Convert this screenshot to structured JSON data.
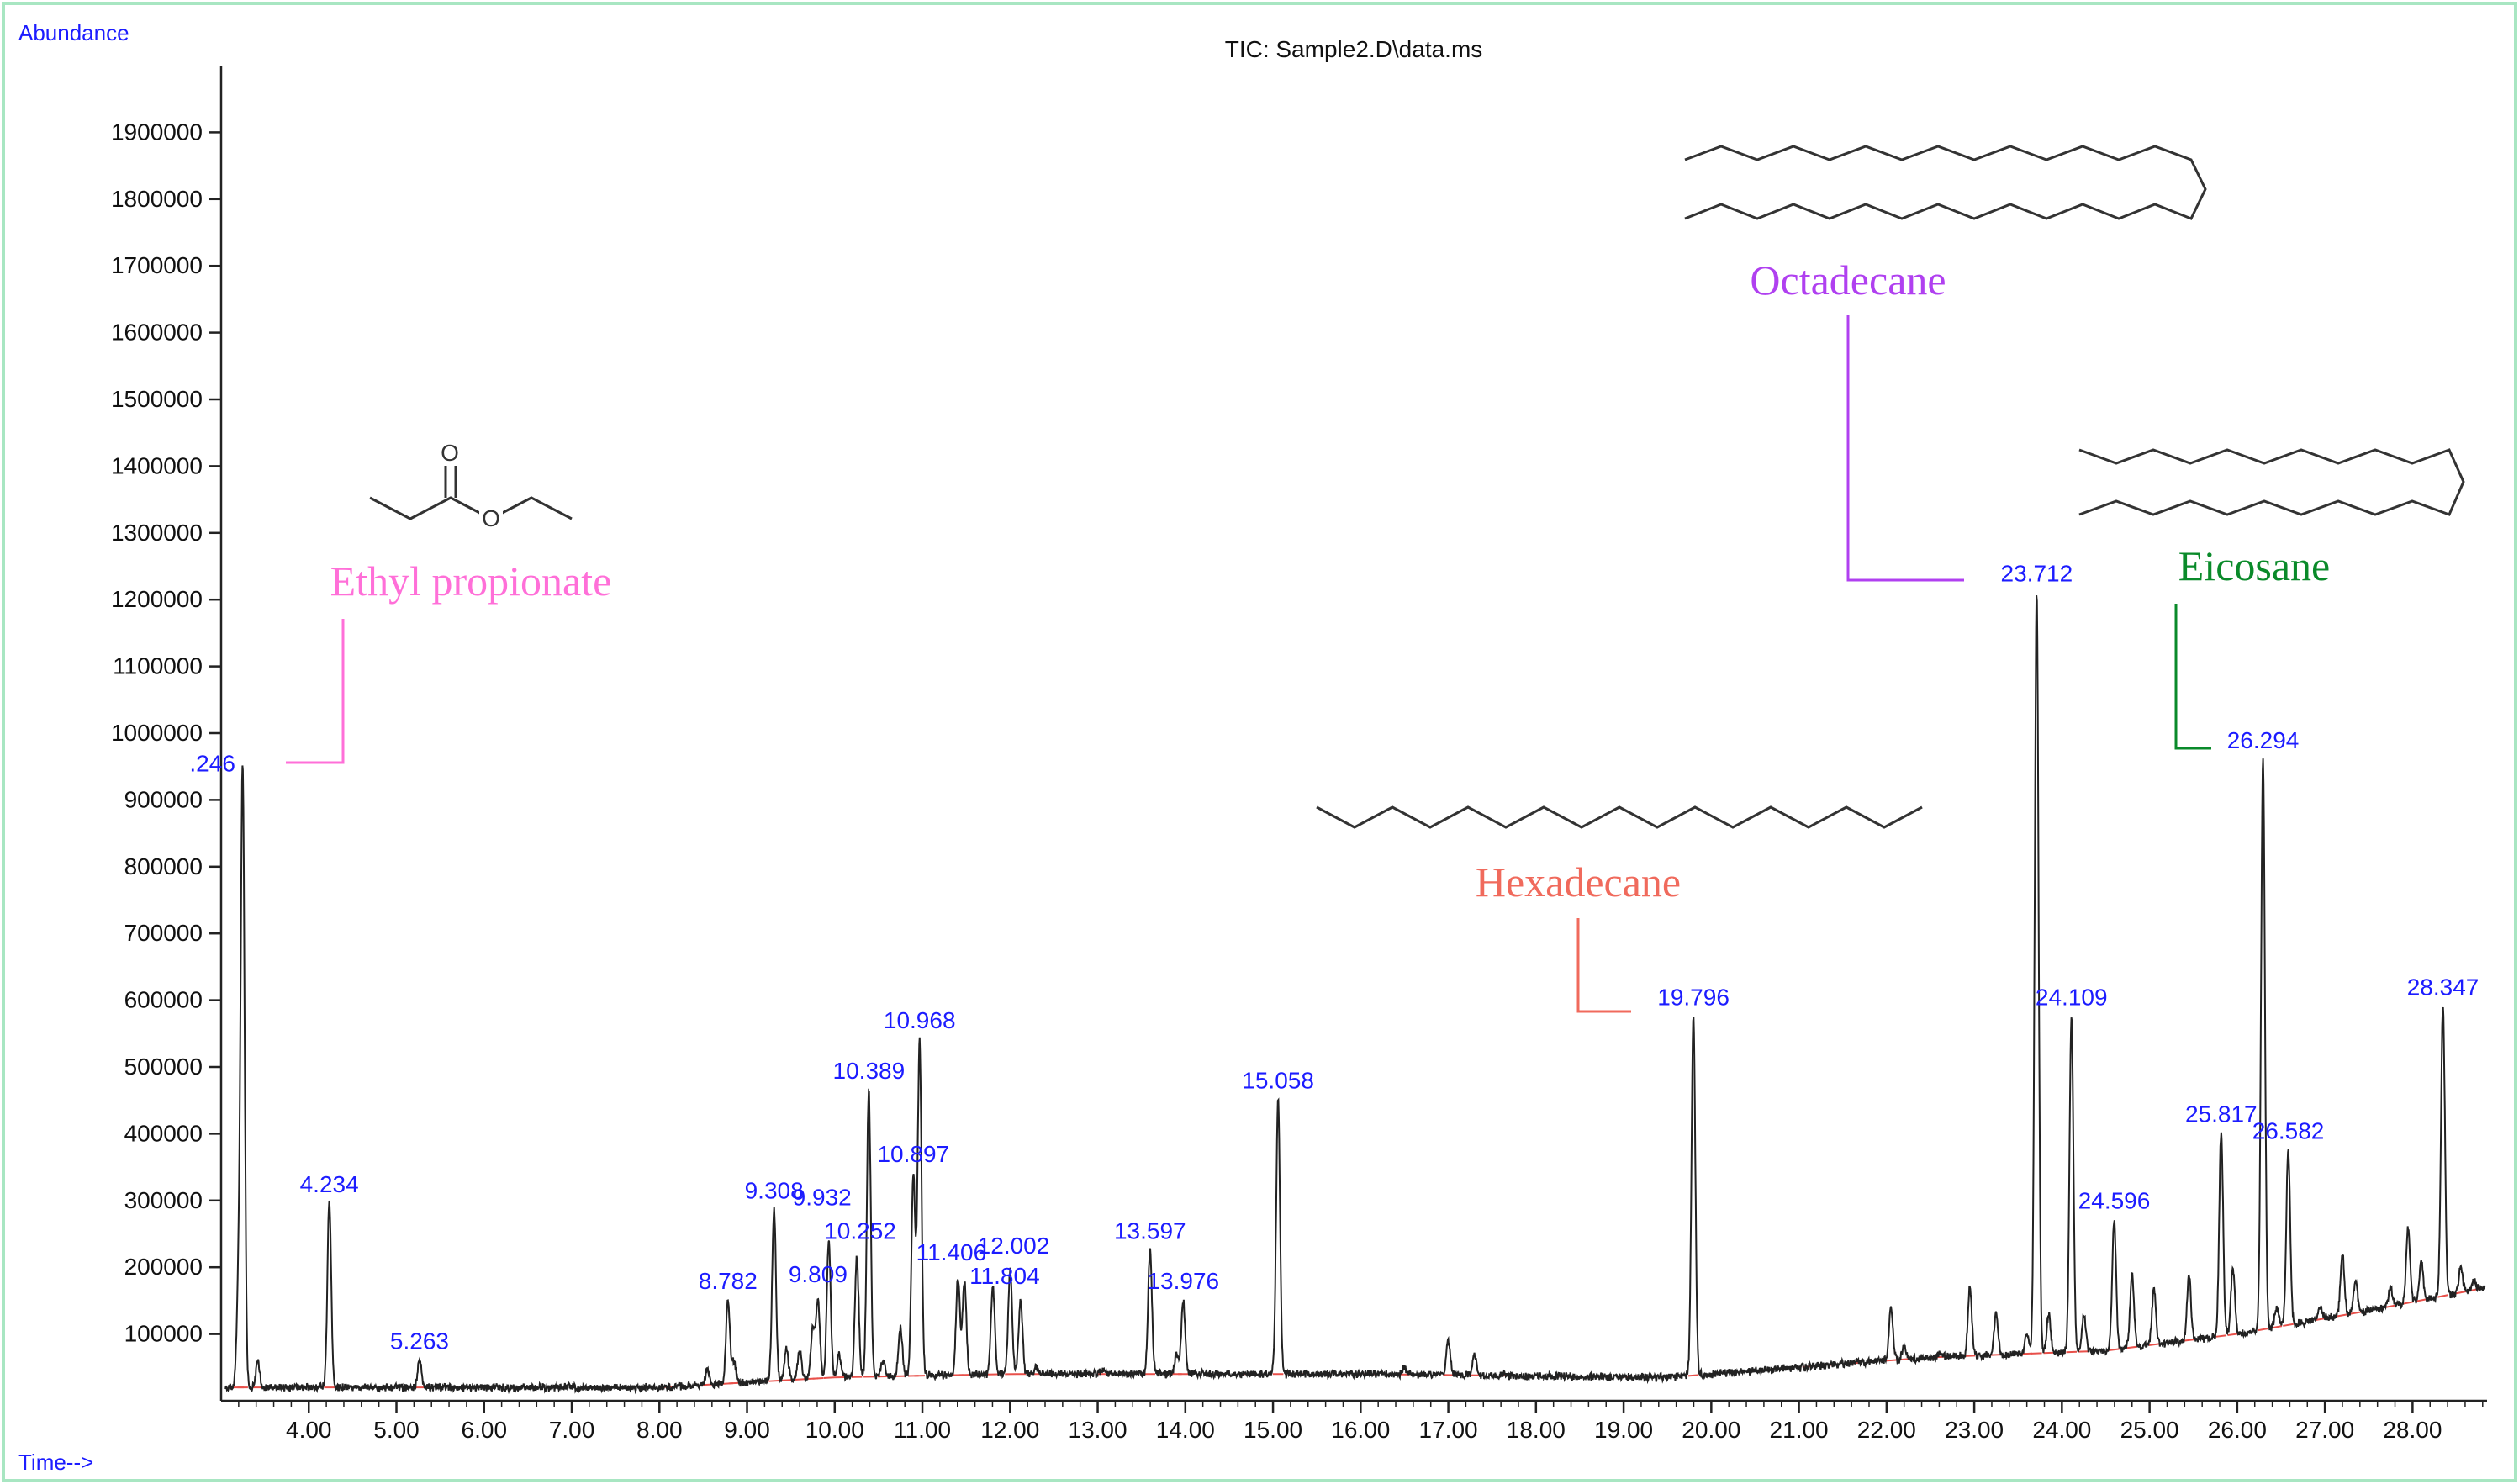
{
  "colors": {
    "frame": "#a8e6c2",
    "trace": "#222222",
    "baseline": "#e8504a",
    "label": "#1c1cff",
    "ethyl_propionate": "#ff6fd8",
    "hexadecane": "#f06a5c",
    "octadecane": "#b040f0",
    "eicosane": "#0a8a2a"
  },
  "chart_data": {
    "type": "line",
    "title": "TIC: Sample2.D\\data.ms",
    "ylabel": "Abundance",
    "xlabel": "Time-->",
    "xlim": [
      3.0,
      28.85
    ],
    "ylim": [
      0,
      2000000
    ],
    "x_ticks": [
      4,
      5,
      6,
      7,
      8,
      9,
      10,
      11,
      12,
      13,
      14,
      15,
      16,
      17,
      18,
      19,
      20,
      21,
      22,
      23,
      24,
      25,
      26,
      27,
      28
    ],
    "x_tick_labels": [
      "4.00",
      "5.00",
      "6.00",
      "7.00",
      "8.00",
      "9.00",
      "10.00",
      "11.00",
      "12.00",
      "13.00",
      "14.00",
      "15.00",
      "16.00",
      "17.00",
      "18.00",
      "19.00",
      "20.00",
      "21.00",
      "22.00",
      "23.00",
      "24.00",
      "25.00",
      "26.00",
      "27.00",
      "28.00"
    ],
    "y_ticks": [
      100000,
      200000,
      300000,
      400000,
      500000,
      600000,
      700000,
      800000,
      900000,
      1000000,
      1100000,
      1200000,
      1300000,
      1400000,
      1500000,
      1600000,
      1700000,
      1800000,
      1900000
    ],
    "y_tick_labels": [
      "100000",
      "200000",
      "300000",
      "400000",
      "500000",
      "600000",
      "700000",
      "800000",
      "900000",
      "1000000",
      "1100000",
      "1200000",
      "1300000",
      "1400000",
      "1500000",
      "1600000",
      "1700000",
      "1800000",
      "1900000"
    ],
    "labeled_peaks": [
      {
        "rt": 3.246,
        "label": ".246",
        "abundance": 940000
      },
      {
        "rt": 4.234,
        "label": "4.234",
        "abundance": 295000
      },
      {
        "rt": 5.263,
        "label": "5.263",
        "abundance": 60000
      },
      {
        "rt": 8.782,
        "label": "8.782",
        "abundance": 150000
      },
      {
        "rt": 9.308,
        "label": "9.308",
        "abundance": 285000
      },
      {
        "rt": 9.809,
        "label": "9.809",
        "abundance": 150000
      },
      {
        "rt": 9.932,
        "label": "9.932",
        "abundance": 240000
      },
      {
        "rt": 10.252,
        "label": "10.252",
        "abundance": 215000
      },
      {
        "rt": 10.389,
        "label": "10.389",
        "abundance": 465000
      },
      {
        "rt": 10.897,
        "label": "10.897",
        "abundance": 340000
      },
      {
        "rt": 10.968,
        "label": "10.968",
        "abundance": 540000
      },
      {
        "rt": 11.406,
        "label": "11.406",
        "abundance": 185000
      },
      {
        "rt": 11.804,
        "label": "11.804",
        "abundance": 170000
      },
      {
        "rt": 12.002,
        "label": "12.002",
        "abundance": 195000
      },
      {
        "rt": 13.597,
        "label": "13.597",
        "abundance": 225000
      },
      {
        "rt": 13.976,
        "label": "13.976",
        "abundance": 150000
      },
      {
        "rt": 15.058,
        "label": "15.058",
        "abundance": 450000
      },
      {
        "rt": 19.796,
        "label": "19.796",
        "abundance": 575000
      },
      {
        "rt": 23.712,
        "label": "23.712",
        "abundance": 1210000
      },
      {
        "rt": 24.109,
        "label": "24.109",
        "abundance": 575000
      },
      {
        "rt": 24.596,
        "label": "24.596",
        "abundance": 270000
      },
      {
        "rt": 25.817,
        "label": "25.817",
        "abundance": 400000
      },
      {
        "rt": 26.294,
        "label": "26.294",
        "abundance": 960000
      },
      {
        "rt": 26.582,
        "label": "26.582",
        "abundance": 375000
      },
      {
        "rt": 28.347,
        "label": "28.347",
        "abundance": 590000
      }
    ],
    "minor_peaks": [
      [
        3.2,
        170000
      ],
      [
        3.42,
        60000
      ],
      [
        8.1,
        20000
      ],
      [
        8.55,
        45000
      ],
      [
        8.85,
        60000
      ],
      [
        9.45,
        80000
      ],
      [
        9.6,
        75000
      ],
      [
        9.75,
        110000
      ],
      [
        10.05,
        70000
      ],
      [
        10.55,
        60000
      ],
      [
        10.75,
        110000
      ],
      [
        11.48,
        180000
      ],
      [
        12.12,
        150000
      ],
      [
        12.3,
        50000
      ],
      [
        13.05,
        45000
      ],
      [
        13.9,
        70000
      ],
      [
        14.7,
        40000
      ],
      [
        15.3,
        30000
      ],
      [
        15.6,
        35000
      ],
      [
        16.1,
        40000
      ],
      [
        16.5,
        50000
      ],
      [
        17.0,
        90000
      ],
      [
        17.3,
        70000
      ],
      [
        17.65,
        40000
      ],
      [
        18.3,
        35000
      ],
      [
        19.0,
        30000
      ],
      [
        20.6,
        30000
      ],
      [
        21.1,
        45000
      ],
      [
        21.4,
        50000
      ],
      [
        21.65,
        60000
      ],
      [
        22.05,
        140000
      ],
      [
        22.2,
        80000
      ],
      [
        22.6,
        70000
      ],
      [
        22.95,
        170000
      ],
      [
        23.25,
        130000
      ],
      [
        23.6,
        100000
      ],
      [
        23.85,
        130000
      ],
      [
        24.25,
        130000
      ],
      [
        24.8,
        190000
      ],
      [
        25.05,
        170000
      ],
      [
        25.45,
        190000
      ],
      [
        25.95,
        200000
      ],
      [
        26.45,
        140000
      ],
      [
        26.95,
        140000
      ],
      [
        27.2,
        220000
      ],
      [
        27.35,
        180000
      ],
      [
        27.75,
        170000
      ],
      [
        27.95,
        260000
      ],
      [
        28.1,
        210000
      ],
      [
        28.55,
        200000
      ],
      [
        28.7,
        180000
      ]
    ],
    "baseline": [
      [
        3.0,
        20000
      ],
      [
        8.0,
        20000
      ],
      [
        10.0,
        35000
      ],
      [
        12.0,
        40000
      ],
      [
        16.0,
        40000
      ],
      [
        19.5,
        35000
      ],
      [
        21.0,
        50000
      ],
      [
        22.5,
        65000
      ],
      [
        24.5,
        75000
      ],
      [
        26.0,
        100000
      ],
      [
        27.5,
        135000
      ],
      [
        28.85,
        170000
      ]
    ],
    "annotations": [
      {
        "name": "Ethyl propionate",
        "rt": 3.246
      },
      {
        "name": "Hexadecane",
        "rt": 19.796
      },
      {
        "name": "Octadecane",
        "rt": 23.712
      },
      {
        "name": "Eicosane",
        "rt": 26.294
      }
    ]
  }
}
